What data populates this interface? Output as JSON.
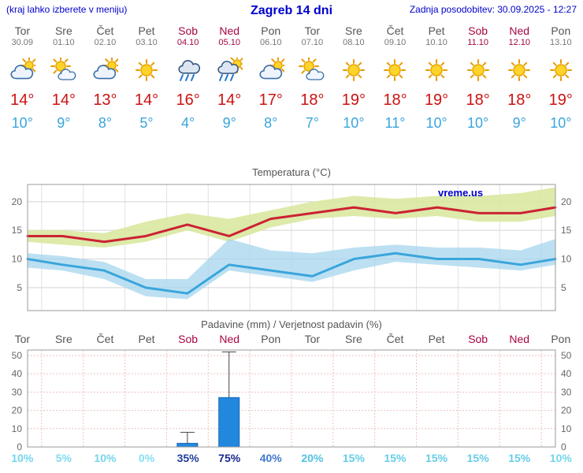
{
  "watermark": "vreme.us",
  "header": {
    "hint": "(kraj lahko izberete v meniju)",
    "title": "Zagreb 14 dni",
    "updated": "Zadnja posodobitev: 30.09.2025 - 12:27"
  },
  "colors": {
    "header_blue": "#0000cc",
    "weekday_gray": "#555555",
    "date_gray": "#777777",
    "weekend_red": "#a50543",
    "max_red": "#cc1111",
    "min_blue": "#3aa5dc",
    "chart_title_gray": "#555555"
  },
  "days": [
    {
      "name": "Tor",
      "date": "30.09",
      "icon": "mostly-cloudy",
      "tmax": "14°",
      "tmin": "10°",
      "weekend": false
    },
    {
      "name": "Sre",
      "date": "01.10",
      "icon": "partly-sunny",
      "tmax": "14°",
      "tmin": "9°",
      "weekend": false
    },
    {
      "name": "Čet",
      "date": "02.10",
      "icon": "mostly-cloudy",
      "tmax": "13°",
      "tmin": "8°",
      "weekend": false
    },
    {
      "name": "Pet",
      "date": "03.10",
      "icon": "sunny",
      "tmax": "14°",
      "tmin": "5°",
      "weekend": false
    },
    {
      "name": "Sob",
      "date": "04.10",
      "icon": "rain",
      "tmax": "16°",
      "tmin": "4°",
      "weekend": true
    },
    {
      "name": "Ned",
      "date": "05.10",
      "icon": "rain-sun",
      "tmax": "14°",
      "tmin": "9°",
      "weekend": true
    },
    {
      "name": "Pon",
      "date": "06.10",
      "icon": "mostly-cloudy",
      "tmax": "17°",
      "tmin": "8°",
      "weekend": false
    },
    {
      "name": "Tor",
      "date": "07.10",
      "icon": "partly-sunny",
      "tmax": "18°",
      "tmin": "7°",
      "weekend": false
    },
    {
      "name": "Sre",
      "date": "08.10",
      "icon": "sunny",
      "tmax": "19°",
      "tmin": "10°",
      "weekend": false
    },
    {
      "name": "Čet",
      "date": "09.10",
      "icon": "sunny",
      "tmax": "18°",
      "tmin": "11°",
      "weekend": false
    },
    {
      "name": "Pet",
      "date": "10.10",
      "icon": "sunny",
      "tmax": "19°",
      "tmin": "10°",
      "weekend": false
    },
    {
      "name": "Sob",
      "date": "11.10",
      "icon": "sunny",
      "tmax": "18°",
      "tmin": "10°",
      "weekend": true
    },
    {
      "name": "Ned",
      "date": "12.10",
      "icon": "sunny",
      "tmax": "18°",
      "tmin": "9°",
      "weekend": true
    },
    {
      "name": "Pon",
      "date": "13.10",
      "icon": "sunny",
      "tmax": "19°",
      "tmin": "10°",
      "weekend": false
    }
  ],
  "chart_data": [
    {
      "type": "line",
      "title": "Temperatura (°C)",
      "categories": [
        "Tor",
        "Sre",
        "Čet",
        "Pet",
        "Sob",
        "Ned",
        "Pon",
        "Tor",
        "Sre",
        "Čet",
        "Pet",
        "Sob",
        "Ned",
        "Pon"
      ],
      "ylim": [
        1,
        23
      ],
      "yticks": [
        5,
        10,
        15,
        20
      ],
      "series": [
        {
          "name": "max",
          "color": "#cc2233",
          "values": [
            14,
            14,
            13,
            14,
            16,
            14,
            17,
            18,
            19,
            18,
            19,
            18,
            18,
            19
          ]
        },
        {
          "name": "min",
          "color": "#3aa5dc",
          "values": [
            10,
            9,
            8,
            5,
            4,
            9,
            8,
            7,
            10,
            11,
            10,
            10,
            9,
            10
          ]
        },
        {
          "name": "max_band_hi",
          "values": [
            15,
            15,
            14.5,
            16.5,
            18,
            17,
            18.5,
            20,
            21,
            20.5,
            21,
            21,
            21.5,
            22.5
          ]
        },
        {
          "name": "max_band_lo",
          "values": [
            13,
            12.5,
            12,
            13,
            15,
            13,
            15.5,
            17,
            17.5,
            17,
            17.5,
            16.5,
            16.5,
            17.5
          ]
        },
        {
          "name": "min_band_hi",
          "values": [
            11,
            10.5,
            9.5,
            6.5,
            6.5,
            13.5,
            11.5,
            11,
            12,
            12.5,
            12,
            12,
            11.5,
            13.5
          ]
        },
        {
          "name": "min_band_lo",
          "values": [
            8.5,
            8,
            6.5,
            3.5,
            3,
            8,
            7,
            6,
            8,
            9.5,
            9,
            8.5,
            8,
            9
          ]
        }
      ],
      "band_colors": {
        "max": "#d9e8a0",
        "min": "#a5d5ee"
      },
      "grid": true,
      "legend": "none"
    },
    {
      "type": "bar",
      "title": "Padavine (mm) / Verjetnost padavin (%)",
      "categories": [
        "Tor",
        "Sre",
        "Čet",
        "Pet",
        "Sob",
        "Ned",
        "Pon",
        "Tor",
        "Sre",
        "Čet",
        "Pet",
        "Sob",
        "Ned",
        "Pon"
      ],
      "ylim": [
        0,
        53
      ],
      "yticks": [
        0,
        10,
        20,
        30,
        40,
        50
      ],
      "values": [
        0,
        0,
        0,
        0,
        2,
        27,
        0,
        0,
        0,
        0,
        0,
        0,
        0,
        0
      ],
      "whisker_max": [
        null,
        null,
        null,
        null,
        8,
        52,
        null,
        null,
        null,
        null,
        null,
        null,
        null,
        null
      ],
      "bar_color": "#2288dd",
      "probabilities": [
        10,
        5,
        10,
        0,
        35,
        75,
        40,
        20,
        15,
        15,
        15,
        15,
        15,
        10
      ],
      "prob_labels": [
        "10%",
        "5%",
        "10%",
        "0%",
        "35%",
        "75%",
        "40%",
        "20%",
        "15%",
        "15%",
        "15%",
        "15%",
        "15%",
        "10%"
      ],
      "prob_colors": [
        "#74d6ec",
        "#7edcf0",
        "#74d6ec",
        "#86e0f2",
        "#1e3e9e",
        "#14288f",
        "#3f78cf",
        "#54c0e0",
        "#66cde8",
        "#66cde8",
        "#66cde8",
        "#66cde8",
        "#66cde8",
        "#74d6ec"
      ],
      "grid": true,
      "legend": "none"
    }
  ]
}
